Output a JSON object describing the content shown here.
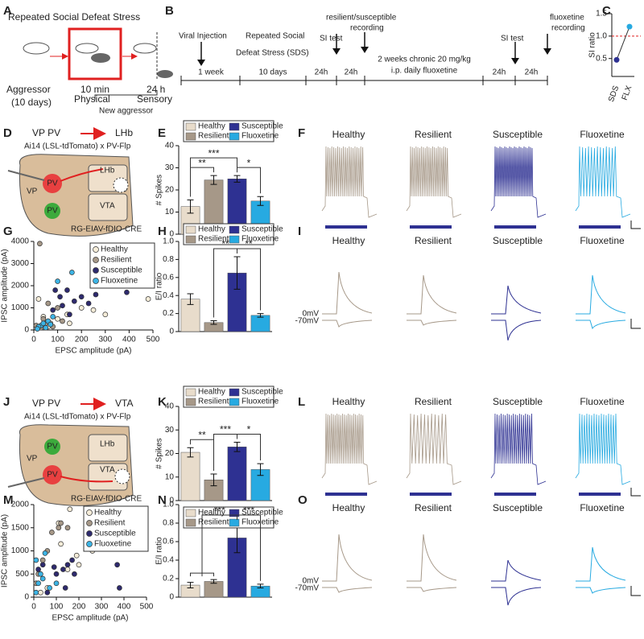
{
  "panel_letters": [
    "A",
    "B",
    "C",
    "D",
    "E",
    "F",
    "G",
    "H",
    "I",
    "J",
    "K",
    "L",
    "M",
    "N",
    "O"
  ],
  "A": {
    "title": "Repeated Social Defeat Stress",
    "aggressor": "Aggressor",
    "days": "(10 days)",
    "min": "10 min",
    "physical": "Physical",
    "hours": "24 h",
    "sensory": "Sensory",
    "new": "New aggressor"
  },
  "B": {
    "viral": "Viral Injection",
    "sds1": "Repeated Social",
    "sds2": "Defeat Stress (SDS)",
    "rec1": "resilient/susceptible",
    "rec2": "recording",
    "si1": "SI test",
    "si2": "SI test",
    "flx1": "fluoxetine",
    "flx2": "recording",
    "week": "1 week",
    "days": "10 days",
    "h1": "24h",
    "h2": "24h",
    "h3": "24h",
    "h4": "24h",
    "chronic1": "2 weeks chronic 20 mg/kg",
    "chronic2": "i.p. daily fluoxetine"
  },
  "D": {
    "title": "VP PV",
    "target": "LHb",
    "cross": "Ai14 (LSL-tdTomato) x PV-Flp",
    "vp": "VP",
    "pv1": "PV",
    "pv2": "PV",
    "lhb": "LHb",
    "vta": "VTA",
    "virus": "RG-EIAV-fDIO-CRE"
  },
  "J": {
    "title": "VP PV",
    "target": "VTA",
    "cross": "Ai14 (LSL-tdTomato) x PV-Flp",
    "vp": "VP",
    "pv1": "PV",
    "pv2": "PV",
    "lhb": "LHb",
    "vta": "VTA",
    "virus": "RG-EIAV-fDIO-CRE"
  },
  "traces": {
    "F": [
      "Healthy",
      "Resilient",
      "Susceptible",
      "Fluoxetine"
    ],
    "I": [
      "Healthy",
      "Resilient",
      "Susceptible",
      "Fluoxetine"
    ],
    "L": [
      "Healthy",
      "Resilient",
      "Susceptible",
      "Fluoxetine"
    ],
    "O": [
      "Healthy",
      "Resilient",
      "Susceptible",
      "Fluoxetine"
    ],
    "I_levels": [
      "0mV",
      "-70mV"
    ],
    "O_levels": [
      "0mV",
      "-70mV"
    ]
  },
  "chart_data": [
    {
      "type": "line",
      "ylabel": "SI ratio",
      "categories": [
        "SDS",
        "FLX"
      ],
      "values": [
        0.47,
        1.21
      ],
      "colors": [
        "#2e3192",
        "#27aae1"
      ],
      "ylim": [
        0.1,
        1.5
      ],
      "yticks": [
        0.5,
        {
          "value": 1,
          "label": "1.0"
        },
        1.5
      ],
      "reference_line": 1
    },
    {
      "type": "bar",
      "ylabel": "# Spikes",
      "categories": [
        "Healthy",
        "Resilient",
        "Susceptible",
        "Fluoxetine"
      ],
      "values": [
        12.5,
        24.5,
        25,
        15
      ],
      "errors": [
        3,
        2,
        1.5,
        2
      ],
      "colors": [
        "#e8dccb",
        "#a69888",
        "#2e3192",
        "#27aae1"
      ],
      "ylim": [
        0,
        40
      ],
      "yticks": [
        0,
        10,
        20,
        30,
        40
      ],
      "comparisons": [
        {
          "label": "**",
          "from": [
            0
          ],
          "to": [
            1
          ]
        },
        {
          "label": "***",
          "from": [
            0
          ],
          "to": [
            2
          ]
        },
        {
          "label": "*",
          "from": [
            2
          ],
          "to": [
            3
          ]
        }
      ]
    },
    {
      "type": "scatter",
      "xlabel": "EPSC amplitude (pA)",
      "ylabel": "IPSC amplitude (pA)",
      "xlim": [
        0,
        500
      ],
      "xticks": [
        0,
        100,
        200,
        300,
        400,
        500
      ],
      "ylim": [
        0,
        4000
      ],
      "yticks": [
        0,
        1000,
        2000,
        3000,
        4000
      ],
      "series": [
        {
          "name": "Healthy",
          "color": "#f5ecd8",
          "x": [
            20,
            40,
            70,
            100,
            140,
            200,
            250,
            300,
            480,
            150,
            60
          ],
          "values": [
            1400,
            600,
            300,
            500,
            700,
            1000,
            900,
            700,
            1400,
            300,
            150
          ]
        },
        {
          "name": "Resilient",
          "color": "#a69888",
          "x": [
            25,
            10,
            30,
            50,
            80,
            120,
            60,
            100,
            40
          ],
          "values": [
            3900,
            200,
            100,
            300,
            150,
            400,
            1200,
            1000,
            500
          ]
        },
        {
          "name": "Susceptible",
          "color": "#2e2a6e",
          "x": [
            90,
            110,
            140,
            170,
            200,
            230,
            260,
            390,
            120,
            80,
            150
          ],
          "values": [
            1800,
            1500,
            1800,
            1300,
            1500,
            1200,
            1600,
            1700,
            1100,
            900,
            700
          ]
        },
        {
          "name": "Fluoxetine",
          "color": "#3cb4e5",
          "x": [
            160,
            100,
            30,
            40,
            50,
            60,
            20,
            70,
            80,
            15
          ],
          "values": [
            2600,
            2200,
            200,
            300,
            100,
            400,
            150,
            250,
            600,
            50
          ]
        }
      ]
    },
    {
      "type": "bar",
      "ylabel": "E/I ratio",
      "categories": [
        "Healthy",
        "Resilient",
        "Susceptible",
        "Fluoxetine"
      ],
      "values": [
        0.36,
        0.1,
        0.65,
        0.18
      ],
      "errors": [
        0.06,
        0.02,
        0.18,
        0.02
      ],
      "colors": [
        "#e8dccb",
        "#a69888",
        "#2e3192",
        "#27aae1"
      ],
      "ylim": [
        0,
        1
      ],
      "yticks": [
        0,
        0.2,
        0.4,
        0.6,
        0.8,
        {
          "value": 1,
          "label": "1.0"
        }
      ],
      "comparisons": [
        {
          "label": "**",
          "from": [
            1
          ],
          "to": [
            2
          ]
        },
        {
          "label": "**",
          "from": [
            2
          ],
          "to": [
            3
          ]
        }
      ]
    },
    {
      "type": "bar",
      "ylabel": "# Spikes",
      "categories": [
        "Healthy",
        "Resilient",
        "Susceptible",
        "Fluoxetine"
      ],
      "values": [
        20.5,
        8.8,
        22.8,
        13.2
      ],
      "errors": [
        2,
        2.5,
        2,
        2.5
      ],
      "colors": [
        "#e8dccb",
        "#a69888",
        "#2e3192",
        "#27aae1"
      ],
      "ylim": [
        0,
        40
      ],
      "yticks": [
        0,
        10,
        20,
        30,
        40
      ],
      "comparisons": [
        {
          "label": "**",
          "from": [
            0
          ],
          "to": [
            1
          ]
        },
        {
          "label": "***",
          "from": [
            1
          ],
          "to": [
            2
          ]
        },
        {
          "label": "*",
          "from": [
            2
          ],
          "to": [
            3
          ]
        }
      ]
    },
    {
      "type": "scatter",
      "xlabel": "EPSC amplitude (pA)",
      "ylabel": "IPSC amplitude (pA)",
      "xlim": [
        0,
        500
      ],
      "xticks": [
        0,
        100,
        200,
        300,
        400,
        500
      ],
      "ylim": [
        0,
        2000
      ],
      "yticks": [
        0,
        500,
        1000,
        1500,
        2000
      ],
      "series": [
        {
          "name": "Healthy",
          "color": "#f5ecd8",
          "x": [
            110,
            160,
            260,
            190,
            150,
            200,
            60,
            30,
            120
          ],
          "values": [
            1600,
            1900,
            1000,
            900,
            600,
            700,
            200,
            100,
            1150
          ]
        },
        {
          "name": "Resilient",
          "color": "#a69888",
          "x": [
            80,
            120,
            150,
            110,
            10,
            20,
            40,
            60
          ],
          "values": [
            1400,
            1600,
            1500,
            1500,
            300,
            500,
            800,
            1000
          ]
        },
        {
          "name": "Susceptible",
          "color": "#2e2a6e",
          "x": [
            20,
            40,
            90,
            100,
            130,
            150,
            170,
            180,
            370,
            380,
            60,
            140
          ],
          "values": [
            600,
            700,
            650,
            500,
            600,
            700,
            800,
            500,
            700,
            200,
            100,
            200
          ]
        },
        {
          "name": "Fluoxetine",
          "color": "#3cb4e5",
          "x": [
            10,
            20,
            30,
            10,
            50,
            40,
            70,
            100
          ],
          "values": [
            100,
            300,
            500,
            800,
            950,
            400,
            200,
            300
          ]
        }
      ]
    },
    {
      "type": "bar",
      "ylabel": "E/I ratio",
      "categories": [
        "Healthy",
        "Resilient",
        "Susceptible",
        "Fluoxetine"
      ],
      "values": [
        0.13,
        0.17,
        0.64,
        0.12
      ],
      "errors": [
        0.03,
        0.02,
        0.16,
        0.02
      ],
      "colors": [
        "#e8dccb",
        "#a69888",
        "#2e3192",
        "#27aae1"
      ],
      "ylim": [
        0,
        1
      ],
      "yticks": [
        0,
        0.2,
        0.4,
        0.6,
        0.8,
        {
          "value": 1,
          "label": "1.0"
        }
      ],
      "comparisons": [
        {
          "label": "***",
          "from": [
            0,
            1
          ],
          "to": [
            2
          ]
        },
        {
          "label": "***",
          "from": [
            2
          ],
          "to": [
            3
          ]
        }
      ]
    }
  ]
}
